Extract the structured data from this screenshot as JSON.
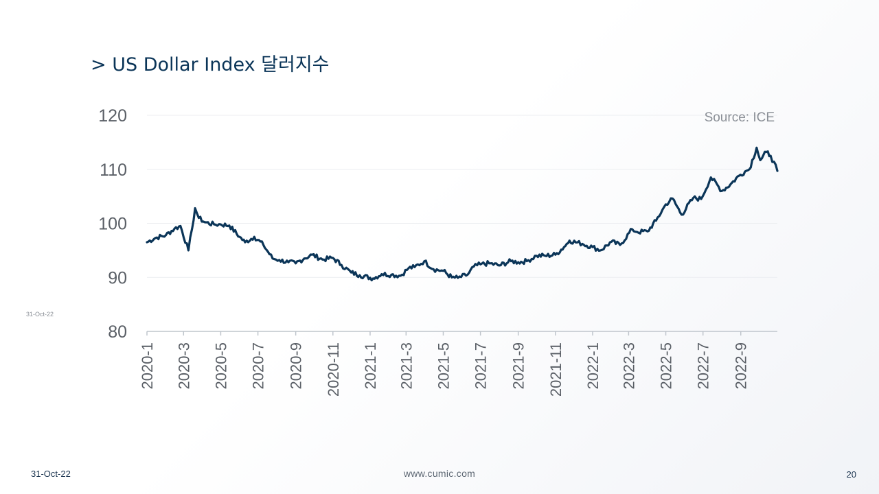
{
  "header": {
    "title": "> US Dollar Index 달러지수"
  },
  "side": {
    "date": "31-Oct-22"
  },
  "footer": {
    "date": "31-Oct-22",
    "url": "www.cumic.com",
    "page": "20"
  },
  "colors": {
    "line": "#0b3558",
    "axis": "#bfc5cc",
    "grid": "#eceef1"
  },
  "chart_data": {
    "type": "line",
    "title": "",
    "xlabel": "",
    "ylabel": "",
    "source": "Source: ICE",
    "ylim": [
      80,
      120
    ],
    "yticks": [
      80,
      90,
      100,
      110,
      120
    ],
    "xlim": [
      "2020-01-01",
      "2022-10-31"
    ],
    "xticks": [
      "2020-1",
      "2020-3",
      "2020-5",
      "2020-7",
      "2020-9",
      "2020-11",
      "2021-1",
      "2021-3",
      "2021-5",
      "2021-7",
      "2021-9",
      "2021-11",
      "2022-1",
      "2022-3",
      "2022-5",
      "2022-7",
      "2022-9"
    ],
    "grid": true,
    "series": [
      {
        "name": "",
        "x": [
          "2020-01-01",
          "2020-01-15",
          "2020-02-01",
          "2020-02-15",
          "2020-02-25",
          "2020-03-09",
          "2020-03-15",
          "2020-03-20",
          "2020-03-26",
          "2020-04-05",
          "2020-04-20",
          "2020-05-01",
          "2020-05-15",
          "2020-06-01",
          "2020-06-10",
          "2020-06-25",
          "2020-07-10",
          "2020-07-25",
          "2020-08-05",
          "2020-08-20",
          "2020-09-01",
          "2020-09-15",
          "2020-09-28",
          "2020-10-15",
          "2020-11-01",
          "2020-11-15",
          "2020-12-01",
          "2020-12-15",
          "2021-01-06",
          "2021-01-20",
          "2021-02-05",
          "2021-02-20",
          "2021-03-05",
          "2021-03-15",
          "2021-03-31",
          "2021-04-15",
          "2021-05-01",
          "2021-05-15",
          "2021-05-25",
          "2021-06-10",
          "2021-06-20",
          "2021-07-01",
          "2021-07-15",
          "2021-08-01",
          "2021-08-20",
          "2021-09-01",
          "2021-09-15",
          "2021-10-01",
          "2021-10-15",
          "2021-11-01",
          "2021-11-15",
          "2021-11-24",
          "2021-12-15",
          "2022-01-01",
          "2022-01-14",
          "2022-02-01",
          "2022-02-15",
          "2022-03-07",
          "2022-03-15",
          "2022-04-01",
          "2022-04-15",
          "2022-05-01",
          "2022-05-12",
          "2022-05-27",
          "2022-06-15",
          "2022-06-28",
          "2022-07-14",
          "2022-08-01",
          "2022-08-15",
          "2022-08-29",
          "2022-09-08",
          "2022-09-15",
          "2022-09-27",
          "2022-10-03",
          "2022-10-13",
          "2022-10-20",
          "2022-10-31"
        ],
        "values": [
          96.5,
          97.3,
          97.8,
          99.0,
          99.5,
          95.0,
          99.0,
          102.8,
          101.0,
          100.2,
          99.8,
          99.8,
          99.6,
          97.5,
          96.5,
          97.5,
          96.0,
          93.5,
          93.2,
          92.8,
          92.6,
          93.5,
          94.2,
          93.3,
          93.6,
          92.3,
          90.9,
          90.4,
          89.8,
          90.6,
          90.5,
          90.3,
          91.7,
          91.9,
          93.0,
          91.5,
          91.2,
          90.0,
          89.9,
          90.5,
          92.0,
          92.4,
          92.6,
          92.2,
          93.0,
          92.8,
          93.0,
          94.0,
          94.0,
          94.2,
          95.6,
          96.8,
          96.2,
          95.6,
          95.0,
          96.6,
          96.0,
          98.9,
          98.4,
          98.5,
          100.5,
          103.5,
          104.6,
          101.6,
          104.7,
          104.5,
          108.5,
          106.0,
          107.2,
          108.8,
          109.6,
          110.0,
          114.0,
          111.7,
          113.2,
          112.5,
          109.7
        ]
      }
    ]
  }
}
